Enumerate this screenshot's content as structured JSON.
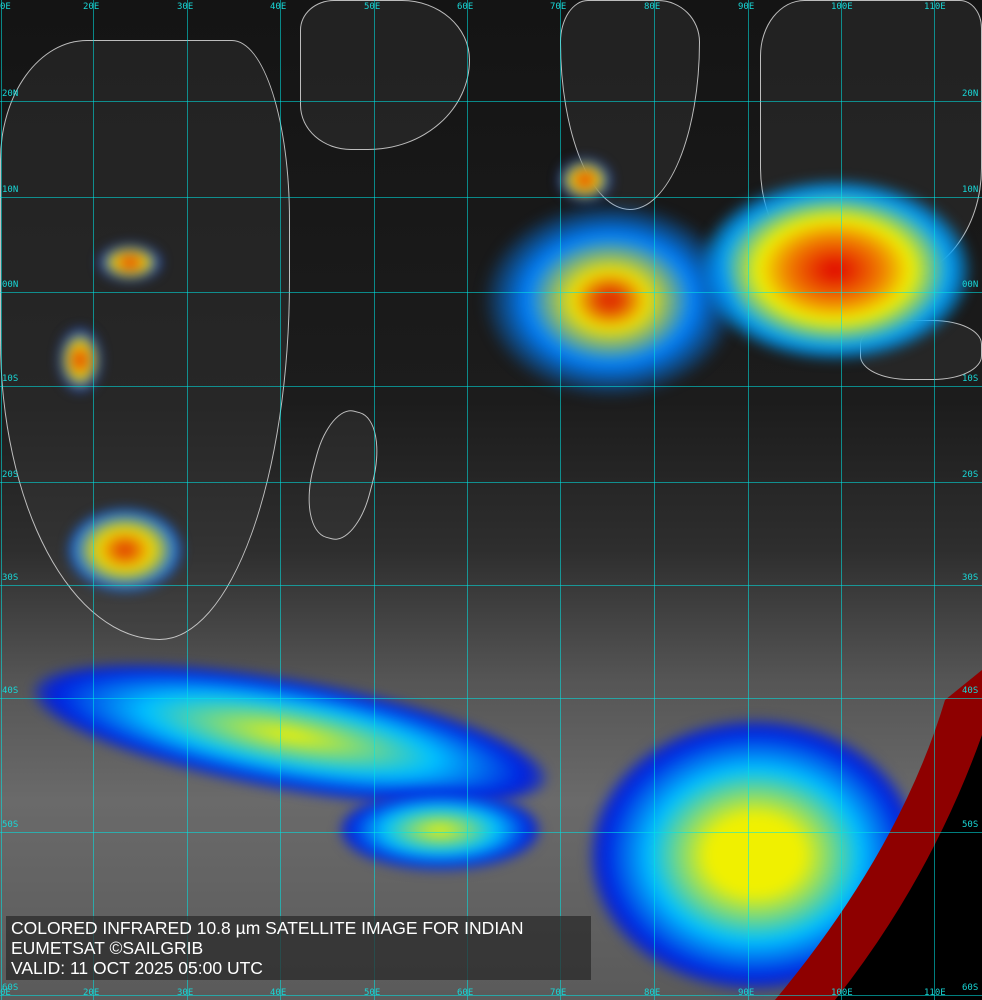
{
  "caption": {
    "line1": "COLORED INFRARED 10.8 µm SATELLITE IMAGE FOR INDIAN",
    "line2": "EUMETSAT ©SAILGRIB",
    "line3": "VALID:  11 OCT 2025 05:00 UTC"
  },
  "grid": {
    "longitude_labels": [
      "0E",
      "20E",
      "30E",
      "40E",
      "50E",
      "60E",
      "70E",
      "80E",
      "90E",
      "100E",
      "110E"
    ],
    "latitude_labels": [
      "20N",
      "10N",
      "00N",
      "10S",
      "20S",
      "30S",
      "40S",
      "50S",
      "60S"
    ]
  },
  "colors": {
    "grid": "#19d6d6",
    "cold_cloud_red": "#e00000",
    "cold_cloud_yellow": "#f0f000",
    "cold_cloud_blue": "#0030ff",
    "earth_limb": "#8e0000"
  }
}
